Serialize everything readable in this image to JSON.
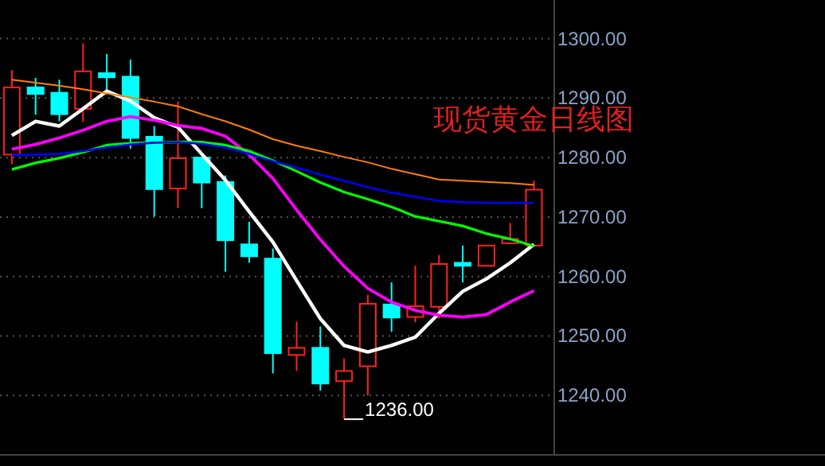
{
  "chart_data": {
    "type": "candlestick",
    "title": "现货黄金日线图",
    "categories": [
      null,
      null,
      null,
      null,
      null,
      null,
      null,
      null,
      null,
      null,
      null,
      null,
      null,
      null,
      null,
      null,
      null,
      null,
      null,
      null,
      null,
      null,
      null
    ],
    "ohlc": [
      [
        1280.5,
        1294.7,
        1278.9,
        1291.8
      ],
      [
        1291.8,
        1293.4,
        1287.2,
        1290.7
      ],
      [
        1290.9,
        1293.1,
        1286.1,
        1287.3
      ],
      [
        1288.2,
        1299.2,
        1286.0,
        1294.5
      ],
      [
        1294.2,
        1297.4,
        1290.9,
        1293.5
      ],
      [
        1293.6,
        1296.5,
        1281.5,
        1283.3
      ],
      [
        1283.5,
        1285.3,
        1270.1,
        1274.7
      ],
      [
        1274.8,
        1289.4,
        1271.5,
        1279.9
      ],
      [
        1280.0,
        1280.0,
        1271.5,
        1275.8
      ],
      [
        1275.9,
        1277.0,
        1260.8,
        1266.1
      ],
      [
        1265.4,
        1269.2,
        1262.3,
        1263.4
      ],
      [
        1263.0,
        1264.7,
        1243.7,
        1247.1
      ],
      [
        1246.8,
        1252.4,
        1244.1,
        1248.0
      ],
      [
        1248.0,
        1251.6,
        1240.8,
        1242.0
      ],
      [
        1242.4,
        1246.2,
        1236.0,
        1244.1
      ],
      [
        1244.9,
        1256.9,
        1240.0,
        1255.4
      ],
      [
        1255.3,
        1259.0,
        1250.7,
        1253.1
      ],
      [
        1253.2,
        1261.8,
        1252.3,
        1255.0
      ],
      [
        1254.9,
        1263.6,
        1252.9,
        1262.1
      ],
      [
        1262.3,
        1265.2,
        1259.0,
        1261.8
      ],
      [
        1261.8,
        1265.2,
        1261.8,
        1265.2
      ],
      [
        1265.6,
        1269.0,
        1265.6,
        1266.3
      ],
      [
        1265.2,
        1276.1,
        1265.2,
        1274.6
      ]
    ],
    "colors": [
      "#ff2020",
      "#00ffff",
      "#00ffff",
      "#ff2020",
      "#00ffff",
      "#00ffff",
      "#00ffff",
      "#ff2020",
      "#00ffff",
      "#00ffff",
      "#00ffff",
      "#00ffff",
      "#ff2020",
      "#00ffff",
      "#ff2020",
      "#ff2020",
      "#00ffff",
      "#ff2020",
      "#ff2020",
      "#00ffff",
      "#ff2020",
      "#ff2020",
      "#ff2020"
    ],
    "series": [
      {
        "type": "line",
        "color": "#ffffff",
        "values": [
          1283.7,
          1286.1,
          1285.3,
          1288.2,
          1291.2,
          1289.5,
          1286.7,
          1285.1,
          1280.6,
          1276.2,
          1270.9,
          1265.8,
          1259.3,
          1252.9,
          1248.4,
          1247.3,
          1248.4,
          1249.8,
          1253.8,
          1257.5,
          1259.6,
          1262.3,
          1265.4
        ]
      },
      {
        "type": "line",
        "color": "#ff00ff",
        "values": [
          1281.4,
          1282.2,
          1283.3,
          1284.6,
          1286.1,
          1286.9,
          1286.3,
          1285.4,
          1284.9,
          1283.6,
          1280.5,
          1276.5,
          1271.2,
          1266.2,
          1261.7,
          1258.0,
          1255.7,
          1254.3,
          1253.5,
          1253.2,
          1253.6,
          1255.7,
          1257.6
        ]
      },
      {
        "type": "line",
        "color": "#00ff00",
        "values": [
          1278.0,
          1279.1,
          1279.9,
          1280.9,
          1282.1,
          1282.4,
          1282.5,
          1282.6,
          1282.6,
          1282.1,
          1281.1,
          1279.5,
          1277.7,
          1275.8,
          1274.2,
          1273.0,
          1271.7,
          1270.1,
          1269.3,
          1268.5,
          1267.2,
          1266.3,
          1265.1
        ]
      },
      {
        "type": "line",
        "color": "#0000ff",
        "values": [
          1280.4,
          1280.5,
          1280.6,
          1281.1,
          1281.7,
          1282.2,
          1282.5,
          1282.6,
          1282.3,
          1281.7,
          1280.6,
          1279.4,
          1278.3,
          1277.1,
          1276.1,
          1275.0,
          1274.1,
          1273.4,
          1272.7,
          1272.5,
          1272.4,
          1272.4,
          1272.4
        ]
      },
      {
        "type": "line",
        "color": "#ff8000",
        "values": [
          1293.1,
          1292.6,
          1292.1,
          1291.5,
          1290.8,
          1290.1,
          1289.4,
          1288.6,
          1287.3,
          1286.1,
          1284.7,
          1283.1,
          1282.0,
          1281.1,
          1280.1,
          1279.2,
          1278.1,
          1277.2,
          1276.3,
          1276.1,
          1275.9,
          1275.7,
          1275.4
        ]
      }
    ],
    "ylim": [
      1230,
      1306.5
    ],
    "yticks": [
      {
        "value": 1300,
        "label": "1300.00"
      },
      {
        "value": 1290,
        "label": "1290.00"
      },
      {
        "value": 1280,
        "label": "1280.00"
      },
      {
        "value": 1270,
        "label": "1270.00"
      },
      {
        "value": 1260,
        "label": "1260.00"
      },
      {
        "value": 1250,
        "label": "1250.00"
      },
      {
        "value": 1240,
        "label": "1240.00"
      }
    ],
    "grid": "y",
    "annotations": [
      "1236.00"
    ]
  }
}
